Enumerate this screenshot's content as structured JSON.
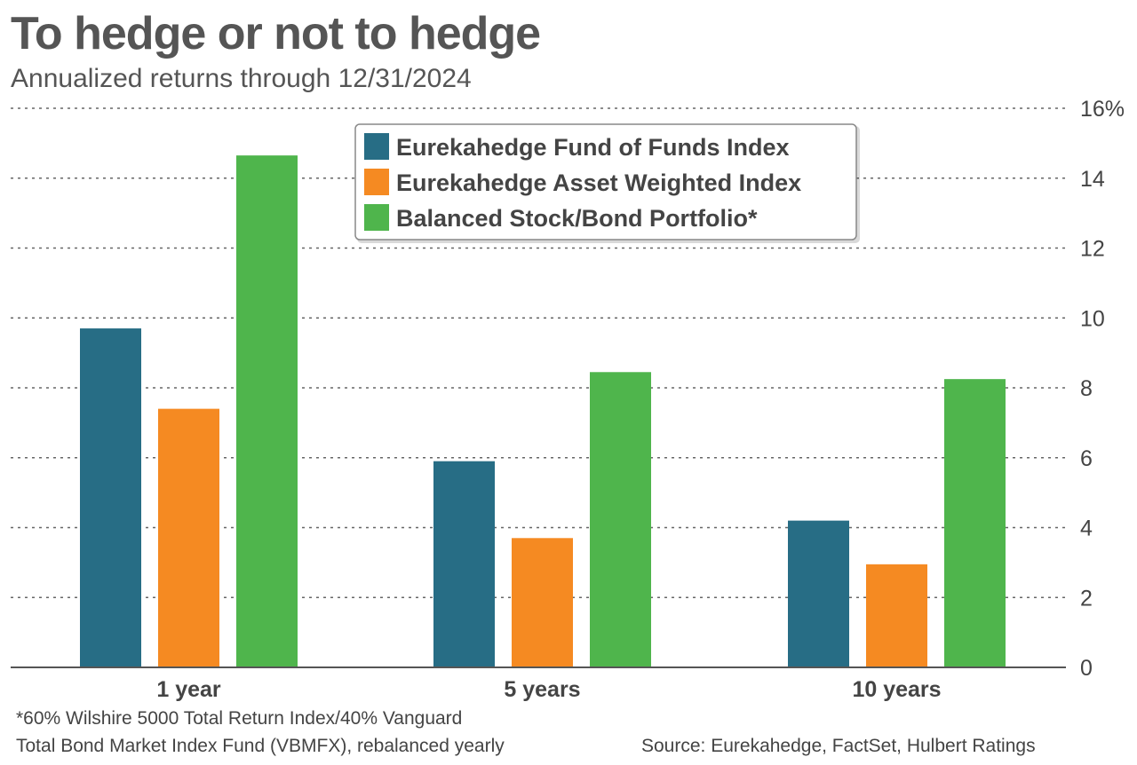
{
  "chart_data": {
    "type": "bar",
    "title": "To hedge or not to hedge",
    "subtitle": "Annualized returns through 12/31/2024",
    "categories": [
      "1 year",
      "5 years",
      "10 years"
    ],
    "series": [
      {
        "name": "Eurekahedge Fund of Funds Index",
        "color": "#276d85",
        "values": [
          9.7,
          5.9,
          4.2
        ]
      },
      {
        "name": "Eurekahedge Asset Weighted Index",
        "color": "#f58a22",
        "values": [
          7.4,
          3.7,
          2.95
        ]
      },
      {
        "name": "Balanced Stock/Bond Portfolio*",
        "color": "#4fb54c",
        "values": [
          14.65,
          8.45,
          8.25
        ]
      }
    ],
    "y_ticks": [
      "0",
      "2",
      "4",
      "6",
      "8",
      "10",
      "12",
      "14",
      "16%"
    ],
    "ylim": [
      0,
      16
    ],
    "grid": true,
    "legend": "top-center",
    "footnote": [
      "*60% Wilshire 5000 Total Return Index/40% Vanguard",
      "Total Bond Market Index Fund (VBMFX), rebalanced yearly"
    ],
    "source": "Source: Eurekahedge, FactSet, Hulbert Ratings"
  }
}
